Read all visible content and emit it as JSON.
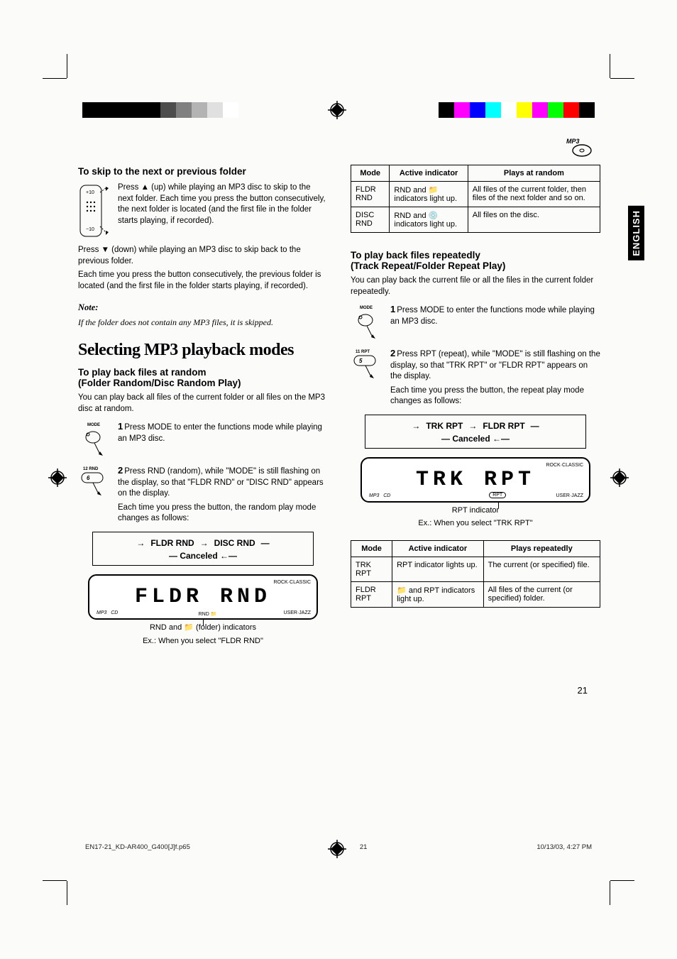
{
  "colors": {
    "printbar_left": [
      "#000000",
      "#000000",
      "#000000",
      "#000000",
      "#000000",
      "#4d4d4d",
      "#808080",
      "#b3b3b3",
      "#e0e0e0",
      "#ffffff"
    ],
    "printbar_right": [
      "#000000",
      "#ff00ff",
      "#0000ff",
      "#00ffff",
      "#ffffff",
      "#ffff00",
      "#ff00ff",
      "#00ff00",
      "#ff0000",
      "#000000"
    ],
    "text": "#000000",
    "background": "#ffffff",
    "lang_tab_bg": "#000000",
    "lang_tab_fg": "#ffffff"
  },
  "badge": {
    "label": "MP3"
  },
  "lang_tab": "ENGLISH",
  "page_number": "21",
  "footer": {
    "file": "EN17-21_KD-AR400_G400[J]f.p65",
    "page": "21",
    "timestamp": "10/13/03, 4:27 PM"
  },
  "left": {
    "h_skip": "To skip to the next or previous folder",
    "skip_up": "Press ▲ (up) while playing an MP3 disc to skip to the next folder. Each time you press the button consecutively, the next folder is located (and the first file in the folder starts playing, if recorded).",
    "skip_down": "Press ▼ (down) while playing an MP3 disc to skip back to the previous folder.",
    "skip_down2": "Each time you press the button consecutively, the previous folder is located (and the first file in the folder starts playing, if recorded).",
    "note_title": "Note:",
    "note_body": "If the folder does not contain any MP3 files, it is skipped.",
    "h_modes": "Selecting MP3 playback modes",
    "h_random": "To play back files at random",
    "h_random2": "(Folder Random/Disc Random Play)",
    "random_intro": "You can play back all files of the current folder or all files on the MP3 disc at random.",
    "step1": "Press MODE to enter the functions mode while playing an MP3 disc.",
    "step1_label": "MODE",
    "step2a": "Press RND (random), while \"MODE\" is still flashing on the display, so that \"FLDR RND\" or \"DISC RND\" appears on the display.",
    "step2b": "Each time you press the button, the random play mode changes as follows:",
    "step2_label": "12 RND",
    "cycle": {
      "a": "FLDR RND",
      "b": "DISC RND",
      "cancel": "Canceled"
    },
    "display_text": "FLDR  RND",
    "display_sub1": "RND and 📁 (folder) indicators",
    "display_sub2": "Ex.: When you select \"FLDR RND\""
  },
  "right": {
    "table_rnd": {
      "headers": [
        "Mode",
        "Active indicator",
        "Plays at random"
      ],
      "rows": [
        [
          "FLDR RND",
          "RND and 📁 indicators light up.",
          "All files of the current folder, then files of the next folder and so on."
        ],
        [
          "DISC RND",
          "RND and 💿 indicators light up.",
          "All files on the disc."
        ]
      ]
    },
    "h_repeat": "To play back files repeatedly",
    "h_repeat2": "(Track Repeat/Folder Repeat Play)",
    "repeat_intro": "You can play back the current file or all the files in the current folder repeatedly.",
    "step1": "Press MODE to enter the functions mode while playing an MP3 disc.",
    "step1_label": "MODE",
    "step2a": "Press RPT (repeat), while \"MODE\" is still flashing on the display, so that \"TRK RPT\" or \"FLDR RPT\" appears on the display.",
    "step2b": "Each time you press the button, the repeat play mode changes as follows:",
    "step2_label": "11 RPT",
    "cycle": {
      "a": "TRK RPT",
      "b": "FLDR RPT",
      "cancel": "Canceled"
    },
    "display_text": "TRK  RPT",
    "display_sub1": "RPT indicator",
    "display_sub2": "Ex.: When you select \"TRK RPT\"",
    "table_rpt": {
      "headers": [
        "Mode",
        "Active indicator",
        "Plays repeatedly"
      ],
      "rows": [
        [
          "TRK RPT",
          "RPT indicator lights up.",
          "The current (or specified) file."
        ],
        [
          "FLDR RPT",
          "📁 and RPT indicators light up.",
          "All files of the current (or specified) folder."
        ]
      ]
    }
  }
}
